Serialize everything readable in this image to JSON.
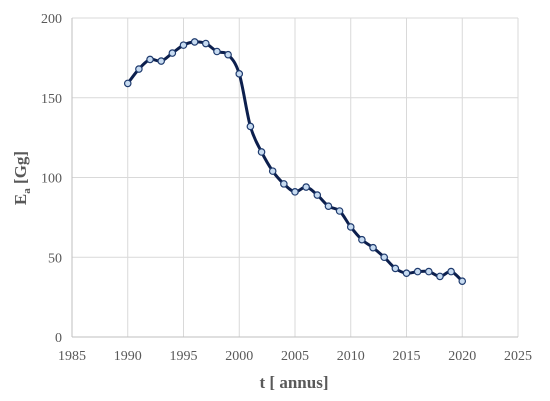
{
  "chart_data": {
    "type": "line",
    "xlabel": "t [ annus]",
    "ylabel": "E",
    "ylabel_subscript": "a",
    "ylabel_suffix": " [Gg]",
    "xlim": [
      1985,
      2025
    ],
    "ylim": [
      0,
      200
    ],
    "xticks": [
      "1985",
      "1990",
      "1995",
      "2000",
      "2005",
      "2010",
      "2015",
      "2020",
      "2025"
    ],
    "yticks": [
      "0",
      "50",
      "100",
      "150",
      "200"
    ],
    "grid": true,
    "smooth": true,
    "line_color": "#0c1f4d",
    "marker_fill": "#c7dbf1",
    "x": [
      1990,
      1991,
      1992,
      1993,
      1994,
      1995,
      1996,
      1997,
      1998,
      1999,
      2000,
      2001,
      2002,
      2003,
      2004,
      2005,
      2006,
      2007,
      2008,
      2009,
      2010,
      2011,
      2012,
      2013,
      2014,
      2015,
      2016,
      2017,
      2018,
      2019,
      2020
    ],
    "values": [
      159,
      168,
      174,
      173,
      178,
      183,
      185,
      184,
      179,
      177,
      165,
      132,
      116,
      104,
      96,
      91,
      94,
      89,
      82,
      79,
      69,
      61,
      56,
      50,
      43,
      40,
      41,
      41,
      38,
      41,
      35
    ]
  }
}
